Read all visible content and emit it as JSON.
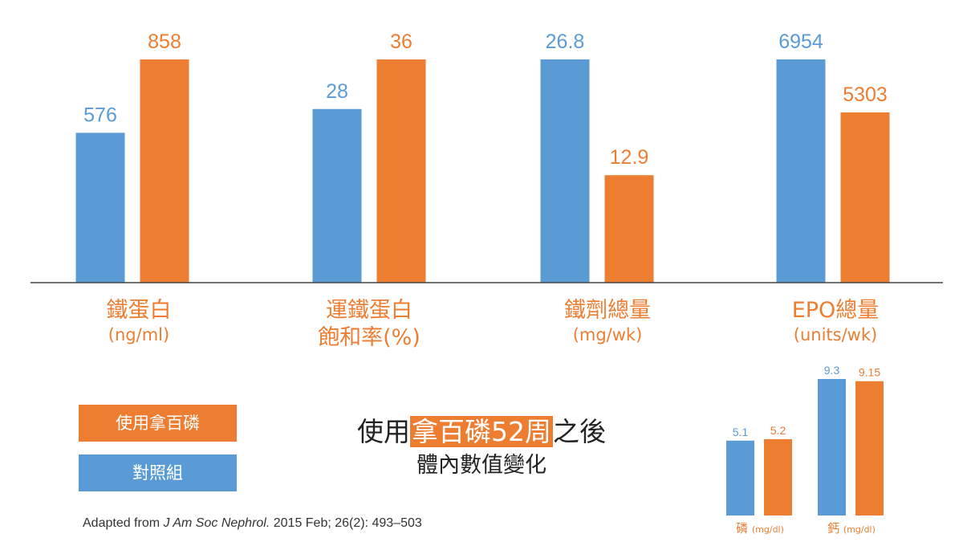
{
  "chart_data": [
    {
      "type": "bar",
      "categories": [
        {
          "line1": "鐵蛋白",
          "line2": "(ng/ml)"
        },
        {
          "line1": "運鐵蛋白",
          "line2": "飽和率(%)"
        },
        {
          "line1": "鐵劑總量",
          "line2": "(mg/wk)"
        },
        {
          "line1": "EPO總量",
          "line2": "(units/wk)"
        }
      ],
      "series": [
        {
          "name": "對照組",
          "color": "#5B9BD5",
          "values": [
            576,
            28,
            26.8,
            6954
          ],
          "labels": [
            "576",
            "28",
            "26.8",
            "6954"
          ]
        },
        {
          "name": "使用拿百磷",
          "color": "#ED7D31",
          "values": [
            858,
            36,
            12.9,
            5303
          ],
          "labels": [
            "858",
            "36",
            "12.9",
            "5303"
          ]
        }
      ],
      "note": "each category drawn on its own independent scale",
      "legend": "bottom-left"
    },
    {
      "type": "bar",
      "categories": [
        {
          "name": "磷",
          "unit": "(mg/dl)"
        },
        {
          "name": "鈣",
          "unit": "(mg/dl)"
        }
      ],
      "series": [
        {
          "name": "對照組",
          "color": "#5B9BD5",
          "values": [
            5.1,
            9.3
          ],
          "labels": [
            "5.1",
            "9.3"
          ]
        },
        {
          "name": "使用拿百磷",
          "color": "#ED7D31",
          "values": [
            5.2,
            9.15
          ],
          "labels": [
            "5.2",
            "9.15"
          ]
        }
      ]
    }
  ],
  "legend": {
    "orange_label": "使用拿百磷",
    "blue_label": "對照組"
  },
  "title": {
    "prefix": "使用",
    "highlight": "拿百磷52周",
    "suffix": "之後",
    "line2": "體內數值變化"
  },
  "source": {
    "prefix": "Adapted from ",
    "journal": "J Am Soc Nephrol.",
    "suffix": " 2015 Feb; 26(2): 493–503"
  },
  "colors": {
    "blue": "#5B9BD5",
    "orange": "#ED7D31"
  }
}
